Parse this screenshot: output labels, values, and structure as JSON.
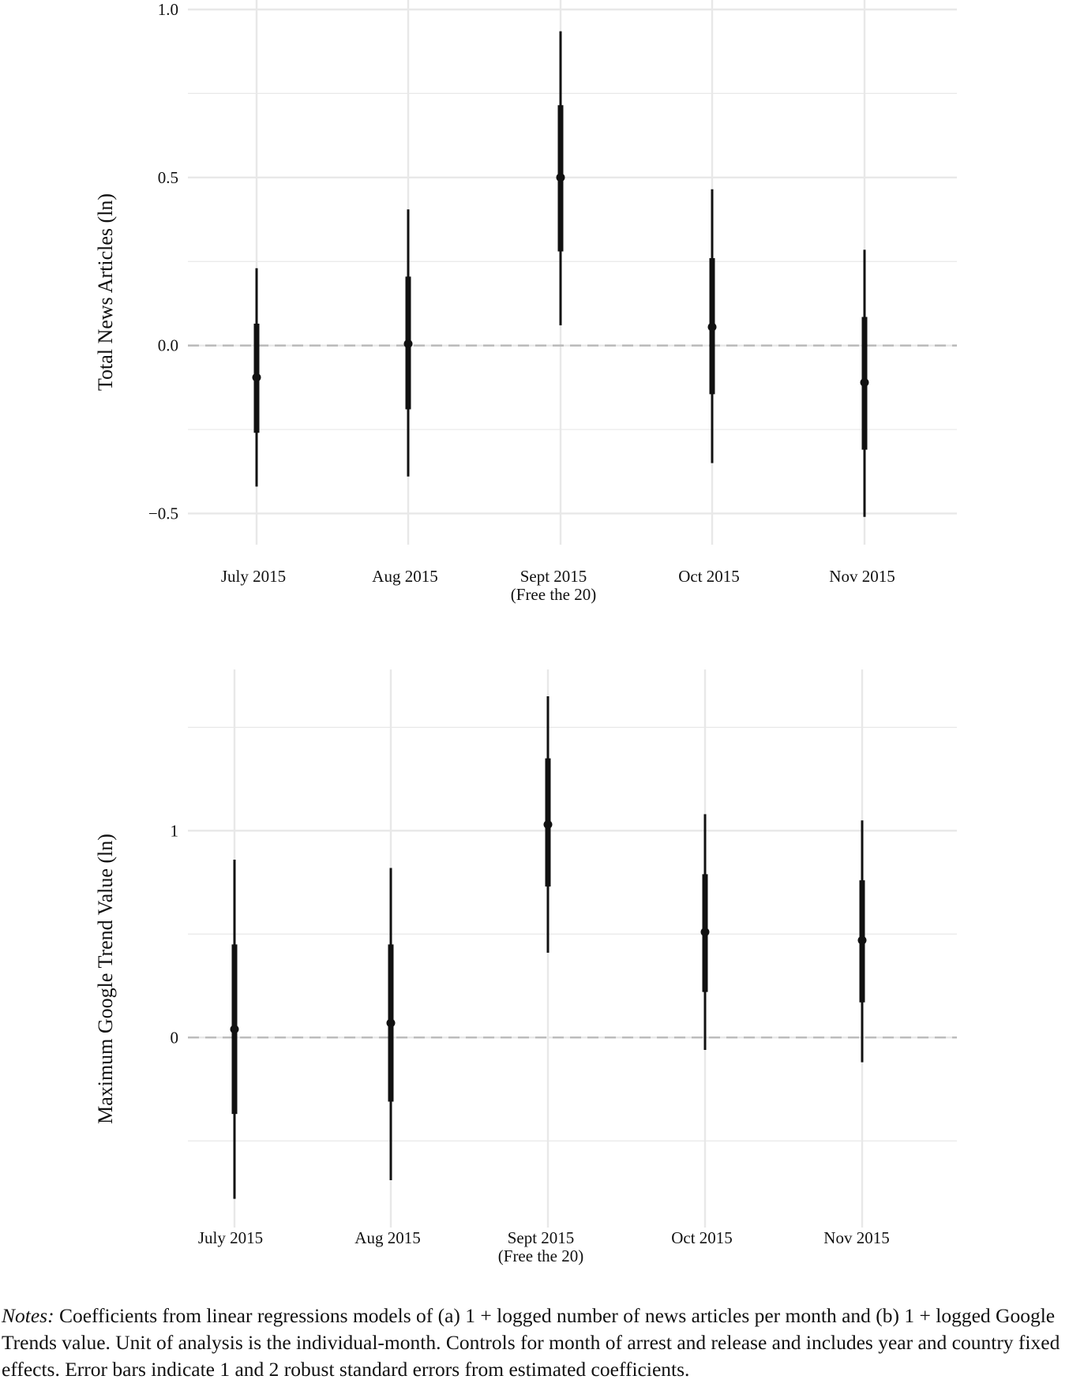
{
  "chart_data": [
    {
      "id": "panel-a",
      "type": "scatter",
      "style": "coefficient point estimates with 1 SE (thick) and 2 SE (thin) error bars",
      "title": "",
      "xlabel": "",
      "ylabel": "Total News Articles (ln)",
      "categories": [
        "July 2015",
        "Aug 2015",
        "Sept 2015",
        "Oct 2015",
        "Nov 2015"
      ],
      "category_sublabels": [
        "",
        "",
        "(Free the 20)",
        "",
        ""
      ],
      "estimates": [
        -0.095,
        0.005,
        0.5,
        0.055,
        -0.11
      ],
      "se1_low": [
        -0.26,
        -0.19,
        0.28,
        -0.145,
        -0.31
      ],
      "se1_high": [
        0.065,
        0.205,
        0.715,
        0.26,
        0.085
      ],
      "se2_low": [
        -0.42,
        -0.39,
        0.06,
        -0.35,
        -0.51
      ],
      "se2_high": [
        0.23,
        0.405,
        0.935,
        0.465,
        0.285
      ],
      "yticks": [
        -0.5,
        0.0,
        0.5,
        1.0
      ],
      "ytick_labels": [
        "−0.5",
        "0.0",
        "0.5",
        "1.0"
      ],
      "minor_gridlines": [
        -0.25,
        0.25,
        0.75
      ],
      "ylim": [
        -0.56,
        1.0
      ],
      "reference_line": 0,
      "grid": true,
      "legend": "none",
      "colors": {
        "marks": "#111111",
        "grid": "#e8e8e8",
        "reference": "#bcbcbc"
      }
    },
    {
      "id": "panel-b",
      "type": "scatter",
      "style": "coefficient point estimates with 1 SE (thick) and 2 SE (thin) error bars",
      "title": "",
      "xlabel": "",
      "ylabel": "Maximum Google Trend Value (ln)",
      "categories": [
        "July 2015",
        "Aug 2015",
        "Sept 2015",
        "Oct 2015",
        "Nov 2015"
      ],
      "category_sublabels": [
        "",
        "",
        "(Free the 20)",
        "",
        ""
      ],
      "estimates": [
        0.04,
        0.07,
        1.03,
        0.51,
        0.47
      ],
      "se1_low": [
        -0.37,
        -0.31,
        0.73,
        0.22,
        0.17
      ],
      "se1_high": [
        0.45,
        0.45,
        1.35,
        0.79,
        0.76
      ],
      "se2_low": [
        -0.78,
        -0.69,
        0.41,
        -0.06,
        -0.12
      ],
      "se2_high": [
        0.86,
        0.82,
        1.65,
        1.08,
        1.05
      ],
      "yticks": [
        0,
        1
      ],
      "ytick_labels": [
        "0",
        "1"
      ],
      "minor_gridlines": [
        -0.5,
        0.5,
        1.5
      ],
      "ylim": [
        -0.9,
        1.78
      ],
      "reference_line": 0,
      "grid": true,
      "legend": "none",
      "colors": {
        "marks": "#111111",
        "grid": "#e8e8e8",
        "reference": "#bcbcbc"
      }
    }
  ],
  "notes": {
    "label": "Notes:",
    "text": " Coefficients from linear regressions models of (a) 1 + logged number of news articles per month and (b) 1 + logged Google Trends value. Unit of analysis is the individual-month. Controls for month of arrest and release and includes year and country fixed effects. Error bars indicate 1 and 2 robust standard errors from estimated coefficients."
  }
}
